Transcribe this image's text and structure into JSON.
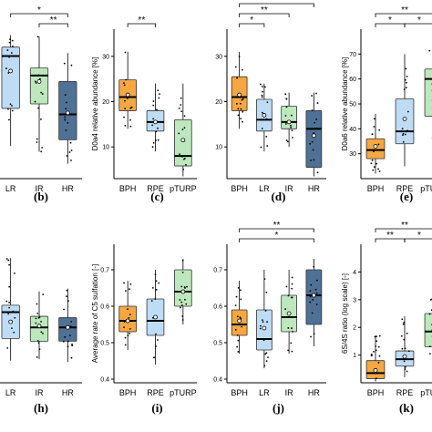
{
  "colors": {
    "BPH": "#f5a742",
    "LR": "#bfdcf5",
    "RPE": "#bfdcf5",
    "IR": "#bde8be",
    "pTURP": "#bde8be",
    "HR": "#4f7196"
  },
  "chart_data": [
    {
      "type": "box",
      "letter": "(b)",
      "ylabel": "",
      "ylim": [
        0,
        1
      ],
      "yticks": [],
      "categories": [
        "LR",
        "IR",
        "HR"
      ],
      "boxes": [
        {
          "q1": 0.47,
          "median": 0.82,
          "q3": 0.88,
          "wlo": 0.22,
          "whi": 0.96,
          "mean": 0.72
        },
        {
          "q1": 0.5,
          "median": 0.69,
          "q3": 0.74,
          "wlo": 0.18,
          "whi": 0.95,
          "mean": 0.65
        },
        {
          "q1": 0.26,
          "median": 0.43,
          "q3": 0.65,
          "wlo": 0.1,
          "whi": 0.84,
          "mean": 0.44
        }
      ],
      "brackets": [
        {
          "from": 0,
          "to": 2,
          "label": "*",
          "level": 1
        },
        {
          "from": 1,
          "to": 2,
          "label": "**",
          "level": 0
        }
      ]
    },
    {
      "type": "box",
      "letter": "(c)",
      "ylabel": "D0a4 relative abundance [%]",
      "ylim": [
        3,
        36
      ],
      "yticks": [
        10,
        20,
        30
      ],
      "categories": [
        "BPH",
        "RPE",
        "pTURP"
      ],
      "boxes": [
        {
          "q1": 18.0,
          "median": 21.0,
          "q3": 24.8,
          "wlo": 14.0,
          "whi": 31.0,
          "mean": 21.5
        },
        {
          "q1": 13.5,
          "median": 15.5,
          "q3": 18.0,
          "wlo": 9.0,
          "whi": 24.0,
          "mean": 15.5
        },
        {
          "q1": 5.8,
          "median": 8.0,
          "q3": 16.0,
          "wlo": 3.5,
          "whi": 24.0,
          "mean": 11.5
        }
      ],
      "brackets": [
        {
          "from": 0,
          "to": 1,
          "label": "**",
          "level": 0
        }
      ]
    },
    {
      "type": "box",
      "letter": "(d)",
      "ylabel": "",
      "ylim": [
        3,
        36
      ],
      "yticks": [
        10,
        20,
        30
      ],
      "categories": [
        "BPH",
        "LR",
        "IR",
        "HR"
      ],
      "boxes": [
        {
          "q1": 18.0,
          "median": 21.0,
          "q3": 25.5,
          "wlo": 14.0,
          "whi": 31.0,
          "mean": 21.5
        },
        {
          "q1": 13.5,
          "median": 16.0,
          "q3": 20.5,
          "wlo": 9.0,
          "whi": 24.0,
          "mean": 17.0
        },
        {
          "q1": 14.0,
          "median": 15.5,
          "q3": 19.0,
          "wlo": 10.0,
          "whi": 22.0,
          "mean": 15.5
        },
        {
          "q1": 5.5,
          "median": 14.0,
          "q3": 18.0,
          "wlo": 3.5,
          "whi": 22.0,
          "mean": 12.5
        }
      ],
      "brackets": [
        {
          "from": 0,
          "to": 1,
          "label": "*",
          "level": 0
        },
        {
          "from": 0,
          "to": 2,
          "label": "**",
          "level": 1
        },
        {
          "from": 0,
          "to": 3,
          "label": "**",
          "level": 2
        }
      ]
    },
    {
      "type": "box",
      "letter": "(e)",
      "ylabel": "D0a6 relative abundance [%]",
      "ylim": [
        20,
        80
      ],
      "yticks": [
        30,
        40,
        50,
        60,
        70
      ],
      "categories": [
        "BPH",
        "RPE",
        "pTURP"
      ],
      "boxes": [
        {
          "q1": 28.0,
          "median": 31.5,
          "q3": 36.0,
          "wlo": 22.0,
          "whi": 46.0,
          "mean": 33.0
        },
        {
          "q1": 34.0,
          "median": 39.0,
          "q3": 52.0,
          "wlo": 25.0,
          "whi": 70.0,
          "mean": 44.0
        },
        {
          "q1": 45.0,
          "median": 60.0,
          "q3": 64.0,
          "wlo": 36.0,
          "whi": 75.0,
          "mean": 58.0
        }
      ],
      "brackets": [
        {
          "from": 0,
          "to": 1,
          "label": "*",
          "level": 0
        },
        {
          "from": 1,
          "to": 2,
          "label": "*",
          "level": 0
        },
        {
          "from": 0,
          "to": 2,
          "label": "**",
          "level": 1
        }
      ]
    },
    {
      "type": "box",
      "letter": "(h)",
      "ylabel": "",
      "ylim": [
        0,
        1
      ],
      "yticks": [],
      "categories": [
        "LR",
        "IR",
        "HR"
      ],
      "boxes": [
        {
          "q1": 0.32,
          "median": 0.51,
          "q3": 0.56,
          "wlo": 0.16,
          "whi": 0.9,
          "mean": 0.44
        },
        {
          "q1": 0.3,
          "median": 0.4,
          "q3": 0.48,
          "wlo": 0.17,
          "whi": 0.66,
          "mean": 0.41
        },
        {
          "q1": 0.3,
          "median": 0.4,
          "q3": 0.47,
          "wlo": 0.15,
          "whi": 0.68,
          "mean": 0.4
        }
      ],
      "brackets": []
    },
    {
      "type": "box",
      "letter": "(i)",
      "ylabel": "Average rate of C5 sulfation [-]",
      "ylim": [
        0.39,
        0.77
      ],
      "yticks": [
        0.4,
        0.5,
        0.6,
        0.7
      ],
      "categories": [
        "BPH",
        "RPE",
        "pTURP"
      ],
      "boxes": [
        {
          "q1": 0.53,
          "median": 0.56,
          "q3": 0.6,
          "wlo": 0.48,
          "whi": 0.67,
          "mean": 0.56
        },
        {
          "q1": 0.52,
          "median": 0.56,
          "q3": 0.62,
          "wlo": 0.44,
          "whi": 0.7,
          "mean": 0.57
        },
        {
          "q1": 0.6,
          "median": 0.64,
          "q3": 0.7,
          "wlo": 0.55,
          "whi": 0.73,
          "mean": 0.64
        }
      ],
      "brackets": []
    },
    {
      "type": "box",
      "letter": "(j)",
      "ylabel": "",
      "ylim": [
        0.39,
        0.77
      ],
      "yticks": [
        0.4,
        0.5,
        0.6,
        0.7
      ],
      "categories": [
        "BPH",
        "LR",
        "IR",
        "HR"
      ],
      "boxes": [
        {
          "q1": 0.52,
          "median": 0.55,
          "q3": 0.59,
          "wlo": 0.47,
          "whi": 0.67,
          "mean": 0.56
        },
        {
          "q1": 0.48,
          "median": 0.51,
          "q3": 0.59,
          "wlo": 0.43,
          "whi": 0.7,
          "mean": 0.54
        },
        {
          "q1": 0.53,
          "median": 0.57,
          "q3": 0.63,
          "wlo": 0.47,
          "whi": 0.7,
          "mean": 0.58
        },
        {
          "q1": 0.55,
          "median": 0.63,
          "q3": 0.7,
          "wlo": 0.49,
          "whi": 0.73,
          "mean": 0.63
        }
      ],
      "brackets": [
        {
          "from": 0,
          "to": 3,
          "label": "*",
          "level": 0
        },
        {
          "from": 0,
          "to": 3,
          "label": "**",
          "level": 1
        }
      ]
    },
    {
      "type": "box",
      "letter": "(k)",
      "ylabel": "6S/4S ratio (log scale) [-]",
      "ylim": [
        0,
        5
      ],
      "yticks": [
        1,
        2,
        3,
        4
      ],
      "categories": [
        "BPH",
        "RPE",
        "pTURP"
      ],
      "boxes": [
        {
          "q1": 0.15,
          "median": 0.35,
          "q3": 0.8,
          "wlo": 0.05,
          "whi": 1.7,
          "mean": 0.45
        },
        {
          "q1": 0.6,
          "median": 0.85,
          "q3": 1.15,
          "wlo": 0.2,
          "whi": 2.4,
          "mean": 0.95
        },
        {
          "q1": 1.3,
          "median": 1.85,
          "q3": 2.5,
          "wlo": 0.8,
          "whi": 3.2,
          "mean": 1.9
        }
      ],
      "brackets": [
        {
          "from": 0,
          "to": 1,
          "label": "**",
          "level": 0
        },
        {
          "from": 1,
          "to": 2,
          "label": "*",
          "level": 0
        },
        {
          "from": 0,
          "to": 2,
          "label": "**",
          "level": 1
        }
      ]
    }
  ]
}
